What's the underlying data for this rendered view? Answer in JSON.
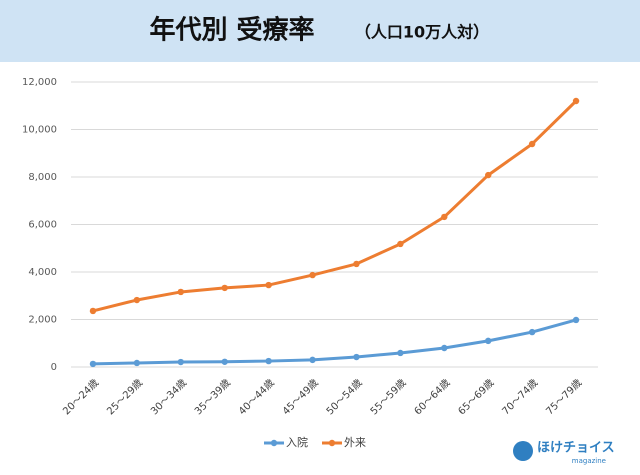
{
  "chart_data": {
    "type": "line",
    "title": "年代別 受療率",
    "subtitle": "（人口10万人対）",
    "categories": [
      "20～24歳",
      "25～29歳",
      "30～34歳",
      "35～39歳",
      "40～44歳",
      "45～49歳",
      "50～54歳",
      "55～59歳",
      "60～64歳",
      "65～69歳",
      "70～74歳",
      "75～79歳"
    ],
    "series": [
      {
        "name": "入院",
        "color": "#5b9bd5",
        "values": [
          130,
          170,
          210,
          220,
          250,
          300,
          420,
          590,
          800,
          1100,
          1470,
          1980
        ]
      },
      {
        "name": "外来",
        "color": "#ed7d31",
        "values": [
          2360,
          2820,
          3160,
          3330,
          3450,
          3870,
          4340,
          5180,
          6320,
          8080,
          9390,
          11200
        ]
      }
    ],
    "ylim": [
      0,
      12000
    ],
    "yticks": [
      0,
      {
        "value": 2000,
        "label": "2,000"
      },
      {
        "value": 4000,
        "label": "4,000"
      },
      {
        "value": 6000,
        "label": "6,000"
      },
      {
        "value": 8000,
        "label": "8,000"
      },
      {
        "value": 10000,
        "label": "10,000"
      },
      {
        "value": 12000,
        "label": "12,000"
      }
    ],
    "grid": true,
    "legend": "bottom"
  },
  "logo": {
    "name": "ほけチョイス",
    "sub": "magazine"
  }
}
